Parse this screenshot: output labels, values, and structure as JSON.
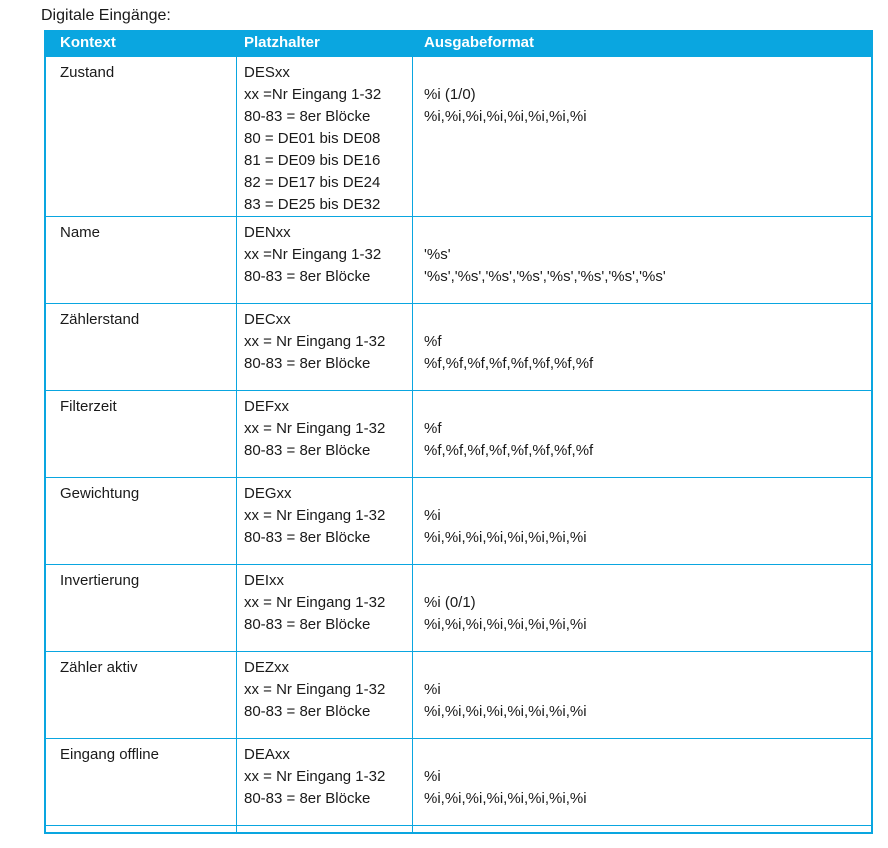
{
  "page": {
    "title": "Digitale Eingänge:"
  },
  "colors": {
    "accent": "#0aa6e0",
    "header_text": "#ffffff",
    "body_text": "#1a1a1a"
  },
  "table": {
    "headers": [
      "Kontext",
      "Platzhalter",
      "Ausgabeformat"
    ],
    "rows": [
      {
        "kontext": "Zustand",
        "platzhalter": [
          "DESxx",
          "xx =Nr Eingang 1-32",
          "80-83 = 8er Blöcke",
          "80 = DE01 bis DE08",
          "81 = DE09 bis DE16",
          "82 = DE17 bis DE24",
          "83 = DE25 bis DE32"
        ],
        "ausgabeformat": [
          "",
          "%i (1/0)",
          "%i,%i,%i,%i,%i,%i,%i,%i"
        ]
      },
      {
        "kontext": "Name",
        "platzhalter": [
          "DENxx",
          "xx =Nr Eingang 1-32",
          "80-83 = 8er Blöcke"
        ],
        "ausgabeformat": [
          "",
          "'%s'",
          "'%s','%s','%s','%s','%s','%s','%s','%s'"
        ]
      },
      {
        "kontext": "Zählerstand",
        "platzhalter": [
          "DECxx",
          "xx = Nr Eingang 1-32",
          "80-83 = 8er Blöcke"
        ],
        "ausgabeformat": [
          "",
          "%f",
          "%f,%f,%f,%f,%f,%f,%f,%f"
        ]
      },
      {
        "kontext": "Filterzeit",
        "platzhalter": [
          "DEFxx",
          "xx = Nr Eingang 1-32",
          "80-83 = 8er Blöcke"
        ],
        "ausgabeformat": [
          "",
          "%f",
          "%f,%f,%f,%f,%f,%f,%f,%f"
        ]
      },
      {
        "kontext": "Gewichtung",
        "platzhalter": [
          "DEGxx",
          "xx = Nr Eingang 1-32",
          "80-83 = 8er Blöcke"
        ],
        "ausgabeformat": [
          "",
          "%i",
          "%i,%i,%i,%i,%i,%i,%i,%i"
        ]
      },
      {
        "kontext": "Invertierung",
        "platzhalter": [
          "DEIxx",
          "xx = Nr Eingang 1-32",
          "80-83 = 8er Blöcke"
        ],
        "ausgabeformat": [
          "",
          "%i (0/1)",
          "%i,%i,%i,%i,%i,%i,%i,%i"
        ]
      },
      {
        "kontext": "Zähler aktiv",
        "platzhalter": [
          "DEZxx",
          "xx = Nr Eingang 1-32",
          "80-83 = 8er Blöcke"
        ],
        "ausgabeformat": [
          "",
          "%i",
          "%i,%i,%i,%i,%i,%i,%i,%i"
        ]
      },
      {
        "kontext": "Eingang offline",
        "platzhalter": [
          "DEAxx",
          "xx = Nr Eingang 1-32",
          "80-83 = 8er Blöcke"
        ],
        "ausgabeformat": [
          "",
          "%i",
          "%i,%i,%i,%i,%i,%i,%i,%i"
        ]
      }
    ]
  }
}
